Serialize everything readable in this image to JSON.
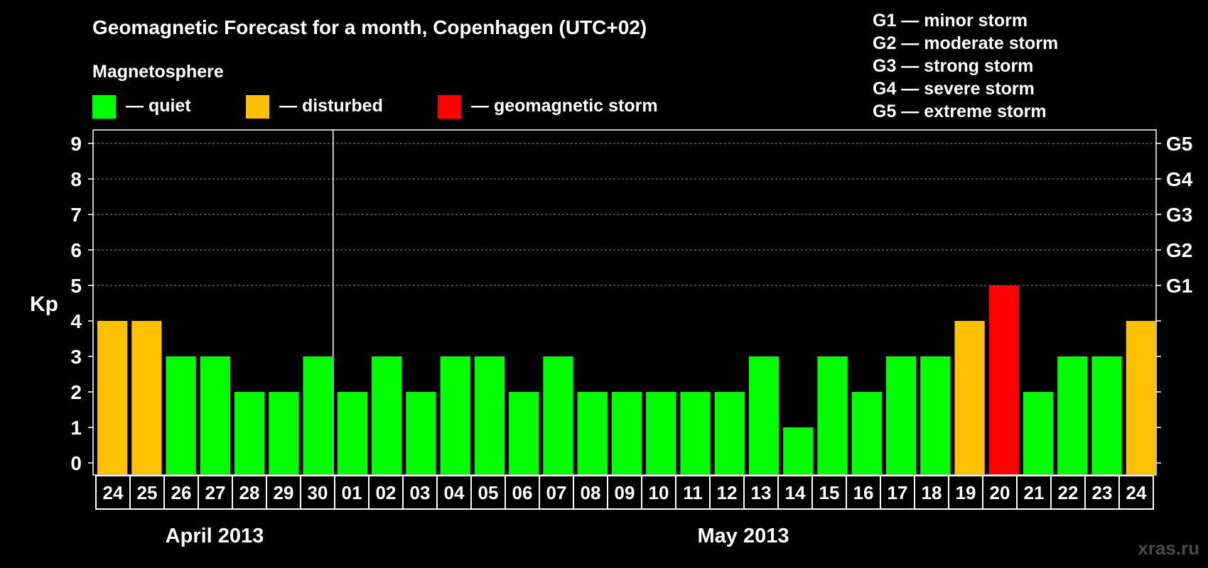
{
  "title": "Geomagnetic Forecast for a month, Copenhagen (UTC+02)",
  "legend": {
    "heading": "Magnetosphere",
    "items": [
      {
        "key": "quiet",
        "label": "— quiet",
        "color": "#00FF00"
      },
      {
        "key": "disturbed",
        "label": "— disturbed",
        "color": "#FFC000"
      },
      {
        "key": "storm",
        "label": "— geomagnetic storm",
        "color": "#FF0000"
      }
    ]
  },
  "g_scale": [
    {
      "level": "G1",
      "text": "G1 — minor storm",
      "kp": 5
    },
    {
      "level": "G2",
      "text": "G2 — moderate storm",
      "kp": 6
    },
    {
      "level": "G3",
      "text": "G3 — strong storm",
      "kp": 7
    },
    {
      "level": "G4",
      "text": "G4 — severe storm",
      "kp": 8
    },
    {
      "level": "G5",
      "text": "G5 — extreme storm",
      "kp": 9
    }
  ],
  "month_labels": [
    "April 2013",
    "May 2013"
  ],
  "watermark": "xras.ru",
  "chart_data": {
    "type": "bar",
    "ylabel": "Kp",
    "ylim": [
      0,
      9
    ],
    "yticks": [
      "0",
      "1",
      "2",
      "3",
      "4",
      "5",
      "6",
      "7",
      "8",
      "9"
    ],
    "grid": true,
    "categories": [
      "24",
      "25",
      "26",
      "27",
      "28",
      "29",
      "30",
      "01",
      "02",
      "03",
      "04",
      "05",
      "06",
      "07",
      "08",
      "09",
      "10",
      "11",
      "12",
      "13",
      "14",
      "15",
      "16",
      "17",
      "18",
      "19",
      "20",
      "21",
      "22",
      "23",
      "24"
    ],
    "values": [
      4,
      4,
      3,
      3,
      2,
      2,
      3,
      2,
      3,
      2,
      3,
      3,
      2,
      3,
      2,
      2,
      2,
      2,
      2,
      3,
      1,
      3,
      2,
      3,
      3,
      4,
      5,
      2,
      3,
      3,
      4
    ],
    "status": [
      "disturbed",
      "disturbed",
      "quiet",
      "quiet",
      "quiet",
      "quiet",
      "quiet",
      "quiet",
      "quiet",
      "quiet",
      "quiet",
      "quiet",
      "quiet",
      "quiet",
      "quiet",
      "quiet",
      "quiet",
      "quiet",
      "quiet",
      "quiet",
      "quiet",
      "quiet",
      "quiet",
      "quiet",
      "quiet",
      "disturbed",
      "storm",
      "quiet",
      "quiet",
      "quiet",
      "disturbed"
    ],
    "month_start_index": [
      0,
      7
    ],
    "month_boundary_after_index": 6
  }
}
